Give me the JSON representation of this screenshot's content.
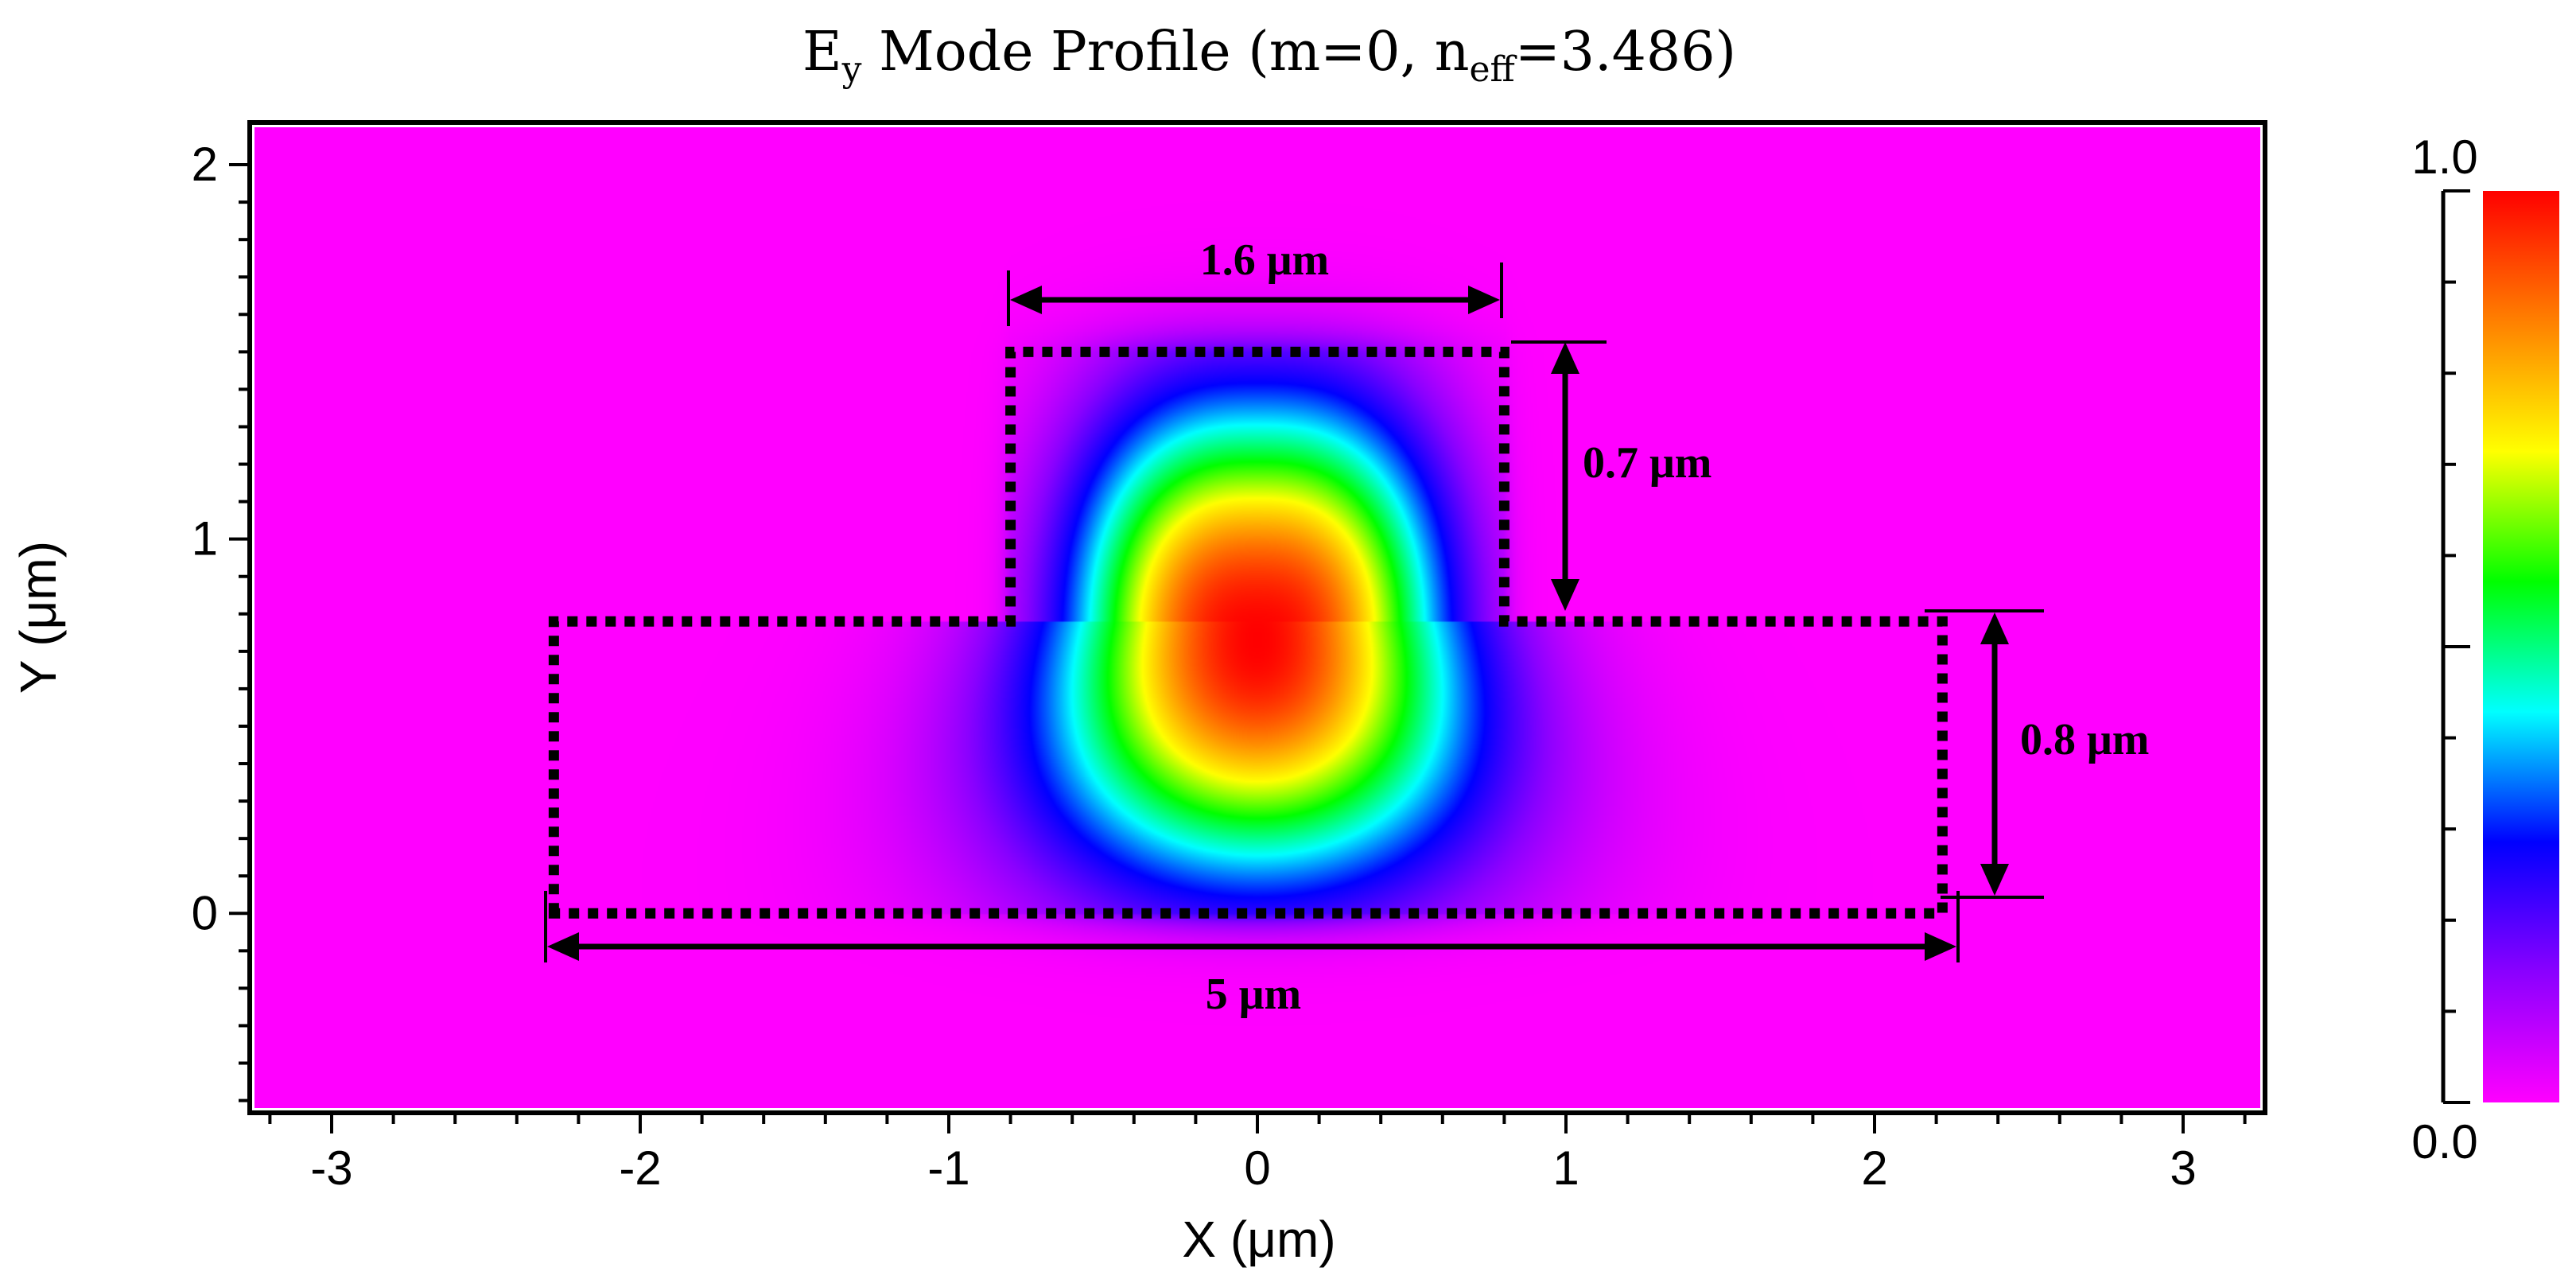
{
  "chart_data": {
    "type": "heatmap",
    "title": {
      "prefix": "E",
      "sub1": "y",
      "middle": " Mode Profile (m=0, n",
      "sub2": "eff",
      "suffix": "=3.486)"
    },
    "xlabel": "X (μm)",
    "ylabel": "Y (μm)",
    "xlim": [
      -3.25,
      3.25
    ],
    "ylim": [
      -0.52,
      2.1
    ],
    "x_ticks": [
      -3,
      -2,
      -1,
      0,
      1,
      2,
      3
    ],
    "x_tick_labels": [
      "-3",
      "-2",
      "-1",
      "0",
      "1",
      "2",
      "3"
    ],
    "y_ticks": [
      0,
      1,
      2
    ],
    "y_tick_labels": [
      "0",
      "1",
      "2"
    ],
    "colorbar": {
      "min": 0.0,
      "max": 1.0,
      "min_label": "0.0",
      "max_label": "1.0",
      "colormap": [
        "#ff00ff",
        "#8a00ff",
        "#0000ff",
        "#00ffff",
        "#00ff00",
        "#ffff00",
        "#ff8000",
        "#ff0000"
      ]
    },
    "field": {
      "peak_x": 0.0,
      "peak_y": 0.73,
      "peak_value": 1.0
    },
    "waveguide": {
      "rib": {
        "x": [
          -0.8,
          0.8
        ],
        "y": [
          0.78,
          1.5
        ]
      },
      "slab": {
        "x": [
          -2.28,
          2.22
        ],
        "y": [
          0.0,
          0.78
        ]
      }
    },
    "annotations": {
      "rib_width": "1.6 μm",
      "rib_height": "0.7 μm",
      "slab_height": "0.8 μm",
      "slab_width": "5 μm"
    }
  }
}
